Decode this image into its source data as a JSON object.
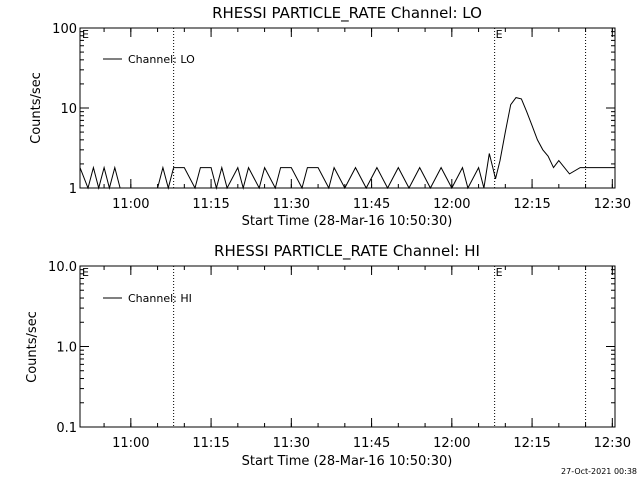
{
  "chart_data": [
    {
      "type": "line",
      "title": "RHESSI PARTICLE_RATE Channel: LO",
      "xlabel": "Start Time (28-Mar-16 10:50:30)",
      "ylabel": "Counts/sec",
      "y_scale": "log",
      "ylim": [
        1,
        100
      ],
      "y_tick_labels": [
        "1",
        "10",
        "100"
      ],
      "x_tick_labels": [
        "11:00",
        "11:15",
        "11:30",
        "11:45",
        "12:00",
        "12:15",
        "12:30"
      ],
      "xlim": [
        "10:50:30",
        "12:30:30"
      ],
      "vertical_markers": [
        {
          "time": "11:08:00",
          "label": ""
        },
        {
          "time": "12:08:00",
          "label": "E"
        },
        {
          "time": "12:25:00",
          "label": ""
        }
      ],
      "corner_label": "E",
      "grid": false,
      "legend_position": "top-left",
      "series": [
        {
          "name": "Channel: LO",
          "x": [
            "10:50:30",
            "10:52:00",
            "10:53:00",
            "10:54:00",
            "10:55:00",
            "10:56:00",
            "10:57:00",
            "10:58:00",
            "11:02:00",
            "11:05:00",
            "11:06:00",
            "11:07:00",
            "11:08:00",
            "11:10:00",
            "11:12:00",
            "11:13:00",
            "11:15:00",
            "11:16:00",
            "11:17:00",
            "11:18:00",
            "11:20:00",
            "11:21:00",
            "11:22:00",
            "11:24:00",
            "11:25:00",
            "11:27:00",
            "11:28:00",
            "11:30:00",
            "11:32:00",
            "11:33:00",
            "11:35:00",
            "11:37:00",
            "11:38:00",
            "11:40:00",
            "11:42:00",
            "11:44:00",
            "11:46:00",
            "11:48:00",
            "11:50:00",
            "11:52:00",
            "11:54:00",
            "11:56:00",
            "11:58:00",
            "12:00:00",
            "12:02:00",
            "12:03:00",
            "12:05:00",
            "12:06:00",
            "12:07:00",
            "12:07:40",
            "12:08:10",
            "12:09:00",
            "12:10:00",
            "12:11:00",
            "12:12:00",
            "12:13:00",
            "12:14:00",
            "12:15:00",
            "12:16:00",
            "12:17:00",
            "12:18:00",
            "12:19:00",
            "12:20:00",
            "12:22:00",
            "12:24:00",
            "12:25:00",
            "12:27:00",
            "12:29:00",
            "12:30:30"
          ],
          "values": [
            1.8,
            1,
            1.8,
            1,
            1.8,
            1,
            1.8,
            1,
            1,
            1,
            1.8,
            1,
            1.8,
            1.8,
            1,
            1.8,
            1.8,
            1,
            1.8,
            1,
            1.8,
            1,
            1.8,
            1,
            1.8,
            1,
            1.8,
            1.8,
            1,
            1.8,
            1.8,
            1,
            1.8,
            1,
            1.8,
            1,
            1.8,
            1,
            1.8,
            1,
            1.8,
            1,
            1.8,
            1,
            1.8,
            1,
            1.8,
            1,
            2.7,
            1.8,
            1.3,
            2.2,
            5,
            11,
            13.5,
            13,
            9,
            6,
            4,
            3,
            2.5,
            1.8,
            2.2,
            1.5,
            1.8,
            1.8,
            1.8,
            1.8,
            1.8
          ]
        }
      ]
    },
    {
      "type": "line",
      "title": "RHESSI PARTICLE_RATE Channel: HI",
      "xlabel": "Start Time (28-Mar-16 10:50:30)",
      "ylabel": "Counts/sec",
      "y_scale": "log",
      "ylim": [
        0.1,
        10
      ],
      "y_tick_labels": [
        "0.1",
        "1.0",
        "10.0"
      ],
      "x_tick_labels": [
        "11:00",
        "11:15",
        "11:30",
        "11:45",
        "12:00",
        "12:15",
        "12:30"
      ],
      "xlim": [
        "10:50:30",
        "12:30:30"
      ],
      "vertical_markers": [
        {
          "time": "11:08:00",
          "label": ""
        },
        {
          "time": "12:08:00",
          "label": "E"
        },
        {
          "time": "12:25:00",
          "label": ""
        }
      ],
      "corner_label": "E",
      "grid": false,
      "legend_position": "top-left",
      "series": [
        {
          "name": "Channel: HI",
          "x": [],
          "values": []
        }
      ]
    }
  ],
  "footer": {
    "timestamp": "27-Oct-2021 00:38"
  }
}
